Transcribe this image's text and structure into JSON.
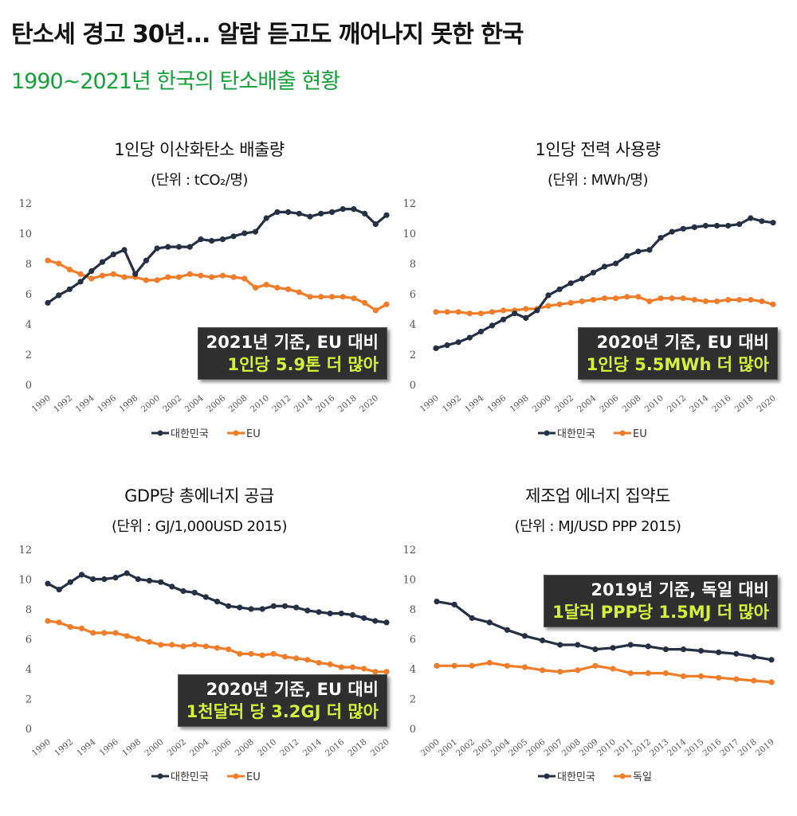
{
  "header": {
    "headline": "탄소세 경고 30년... 알람 듣고도 깨어나지 못한 한국",
    "subheadline": "1990~2021년 한국의 탄소배출 현황"
  },
  "colors": {
    "korea": "#263042",
    "other": "#ef7d2a",
    "subheadline": "#18a03c",
    "callout_bg": "#2f2f2f",
    "callout_highlight": "#d4f03c"
  },
  "chart_data": [
    {
      "type": "line",
      "title": "1인당 이산화탄소 배출량",
      "subtitle": "(단위 : tCO₂/명)",
      "xlabel": "",
      "ylabel": "",
      "ylim": [
        0,
        12
      ],
      "yticks": [
        "0",
        "2",
        "4",
        "6",
        "8",
        "10",
        "12"
      ],
      "x": [
        1990,
        1991,
        1992,
        1993,
        1994,
        1995,
        1996,
        1997,
        1998,
        1999,
        2000,
        2001,
        2002,
        2003,
        2004,
        2005,
        2006,
        2007,
        2008,
        2009,
        2010,
        2011,
        2012,
        2013,
        2014,
        2015,
        2016,
        2017,
        2018,
        2019,
        2020,
        2021
      ],
      "xticks": [
        "1990",
        "1992",
        "1994",
        "1996",
        "1998",
        "2000",
        "2002",
        "2004",
        "2006",
        "2008",
        "2010",
        "2012",
        "2014",
        "2016",
        "2018",
        "2020"
      ],
      "series": [
        {
          "name": "대한민국",
          "values": [
            5.4,
            5.9,
            6.3,
            6.8,
            7.5,
            8.1,
            8.6,
            8.9,
            7.3,
            8.2,
            9.0,
            9.1,
            9.1,
            9.1,
            9.6,
            9.5,
            9.6,
            9.8,
            10.0,
            10.1,
            11.0,
            11.4,
            11.4,
            11.3,
            11.1,
            11.3,
            11.4,
            11.6,
            11.6,
            11.3,
            10.6,
            11.2
          ]
        },
        {
          "name": "EU",
          "values": [
            8.2,
            8.0,
            7.6,
            7.3,
            7.0,
            7.2,
            7.3,
            7.1,
            7.1,
            6.9,
            6.9,
            7.1,
            7.1,
            7.3,
            7.2,
            7.1,
            7.2,
            7.1,
            7.0,
            6.4,
            6.6,
            6.4,
            6.3,
            6.1,
            5.8,
            5.8,
            5.8,
            5.8,
            5.7,
            5.4,
            4.9,
            5.3
          ]
        }
      ],
      "legend": [
        "대한민국",
        "EU"
      ],
      "legend_position": "bottom",
      "grid": false,
      "annotation": {
        "line1": "2021년 기준, EU 대비",
        "line2": "1인당 5.9톤 더 많아"
      }
    },
    {
      "type": "line",
      "title": "1인당 전력 사용량",
      "subtitle": "(단위 : MWh/명)",
      "xlabel": "",
      "ylabel": "",
      "ylim": [
        0,
        12
      ],
      "yticks": [
        "0",
        "2",
        "4",
        "6",
        "8",
        "10",
        "12"
      ],
      "x": [
        1990,
        1991,
        1992,
        1993,
        1994,
        1995,
        1996,
        1997,
        1998,
        1999,
        2000,
        2001,
        2002,
        2003,
        2004,
        2005,
        2006,
        2007,
        2008,
        2009,
        2010,
        2011,
        2012,
        2013,
        2014,
        2015,
        2016,
        2017,
        2018,
        2019,
        2020
      ],
      "xticks": [
        "1990",
        "1992",
        "1994",
        "1996",
        "1998",
        "2000",
        "2002",
        "2004",
        "2006",
        "2008",
        "2010",
        "2012",
        "2014",
        "2016",
        "2018",
        "2020"
      ],
      "series": [
        {
          "name": "대한민국",
          "values": [
            2.4,
            2.6,
            2.8,
            3.1,
            3.5,
            3.9,
            4.3,
            4.7,
            4.4,
            4.9,
            5.9,
            6.3,
            6.7,
            7.0,
            7.4,
            7.8,
            8.0,
            8.5,
            8.8,
            8.9,
            9.7,
            10.1,
            10.3,
            10.4,
            10.5,
            10.5,
            10.5,
            10.6,
            11.0,
            10.8,
            10.7
          ]
        },
        {
          "name": "EU",
          "values": [
            4.8,
            4.8,
            4.8,
            4.7,
            4.7,
            4.8,
            4.9,
            4.9,
            5.0,
            5.0,
            5.2,
            5.3,
            5.4,
            5.5,
            5.6,
            5.7,
            5.7,
            5.8,
            5.8,
            5.5,
            5.7,
            5.7,
            5.7,
            5.6,
            5.5,
            5.5,
            5.6,
            5.6,
            5.6,
            5.5,
            5.3
          ]
        }
      ],
      "legend": [
        "대한민국",
        "EU"
      ],
      "legend_position": "bottom",
      "grid": false,
      "annotation": {
        "line1": "2020년 기준, EU 대비",
        "line2": "1인당 5.5MWh 더 많아"
      }
    },
    {
      "type": "line",
      "title": "GDP당 총에너지 공급",
      "subtitle": "(단위 : GJ/1,000USD 2015)",
      "xlabel": "",
      "ylabel": "",
      "ylim": [
        0,
        12
      ],
      "yticks": [
        "0",
        "2",
        "4",
        "6",
        "8",
        "10",
        "12"
      ],
      "x": [
        1990,
        1991,
        1992,
        1993,
        1994,
        1995,
        1996,
        1997,
        1998,
        1999,
        2000,
        2001,
        2002,
        2003,
        2004,
        2005,
        2006,
        2007,
        2008,
        2009,
        2010,
        2011,
        2012,
        2013,
        2014,
        2015,
        2016,
        2017,
        2018,
        2019,
        2020
      ],
      "xticks": [
        "1990",
        "1992",
        "1994",
        "1996",
        "1998",
        "2000",
        "2002",
        "2004",
        "2006",
        "2008",
        "2010",
        "2012",
        "2014",
        "2016",
        "2018",
        "2020"
      ],
      "series": [
        {
          "name": "대한민국",
          "values": [
            9.7,
            9.3,
            9.8,
            10.3,
            10.0,
            10.0,
            10.1,
            10.4,
            10.0,
            9.9,
            9.8,
            9.5,
            9.2,
            9.1,
            8.8,
            8.5,
            8.2,
            8.1,
            8.0,
            8.0,
            8.2,
            8.2,
            8.1,
            7.9,
            7.8,
            7.7,
            7.7,
            7.6,
            7.4,
            7.2,
            7.1
          ]
        },
        {
          "name": "EU",
          "values": [
            7.2,
            7.1,
            6.8,
            6.7,
            6.4,
            6.4,
            6.4,
            6.2,
            6.0,
            5.8,
            5.6,
            5.6,
            5.5,
            5.6,
            5.5,
            5.4,
            5.3,
            5.0,
            5.0,
            4.9,
            5.0,
            4.8,
            4.7,
            4.6,
            4.4,
            4.3,
            4.1,
            4.1,
            4.0,
            3.8,
            3.8
          ]
        }
      ],
      "legend": [
        "대한민국",
        "EU"
      ],
      "legend_position": "bottom",
      "grid": false,
      "annotation": {
        "line1": "2020년 기준, EU 대비",
        "line2": "1천달러 당 3.2GJ 더 많아"
      }
    },
    {
      "type": "line",
      "title": "제조업 에너지 집약도",
      "subtitle": "(단위 : MJ/USD PPP 2015)",
      "xlabel": "",
      "ylabel": "",
      "ylim": [
        0,
        12
      ],
      "yticks": [
        "0",
        "2",
        "4",
        "6",
        "8",
        "10",
        "12"
      ],
      "x": [
        2000,
        2001,
        2002,
        2003,
        2004,
        2005,
        2006,
        2007,
        2008,
        2009,
        2010,
        2011,
        2012,
        2013,
        2014,
        2015,
        2016,
        2017,
        2018,
        2019
      ],
      "xticks": [
        "2000",
        "2001",
        "2002",
        "2003",
        "2004",
        "2005",
        "2006",
        "2007",
        "2008",
        "2009",
        "2010",
        "2011",
        "2012",
        "2013",
        "2014",
        "2015",
        "2016",
        "2017",
        "2018",
        "2019"
      ],
      "series": [
        {
          "name": "대한민국",
          "values": [
            8.5,
            8.3,
            7.4,
            7.1,
            6.6,
            6.2,
            5.9,
            5.6,
            5.6,
            5.3,
            5.4,
            5.6,
            5.5,
            5.3,
            5.3,
            5.2,
            5.1,
            5.0,
            4.8,
            4.6
          ]
        },
        {
          "name": "독일",
          "values": [
            4.2,
            4.2,
            4.2,
            4.4,
            4.2,
            4.1,
            3.9,
            3.8,
            3.9,
            4.2,
            4.0,
            3.7,
            3.7,
            3.7,
            3.5,
            3.5,
            3.4,
            3.3,
            3.2,
            3.1
          ]
        }
      ],
      "legend": [
        "대한민국",
        "독일"
      ],
      "legend_position": "bottom",
      "grid": false,
      "annotation": {
        "line1": "2019년 기준, 독일 대비",
        "line2": "1달러 PPP당 1.5MJ 더 많아"
      }
    }
  ]
}
